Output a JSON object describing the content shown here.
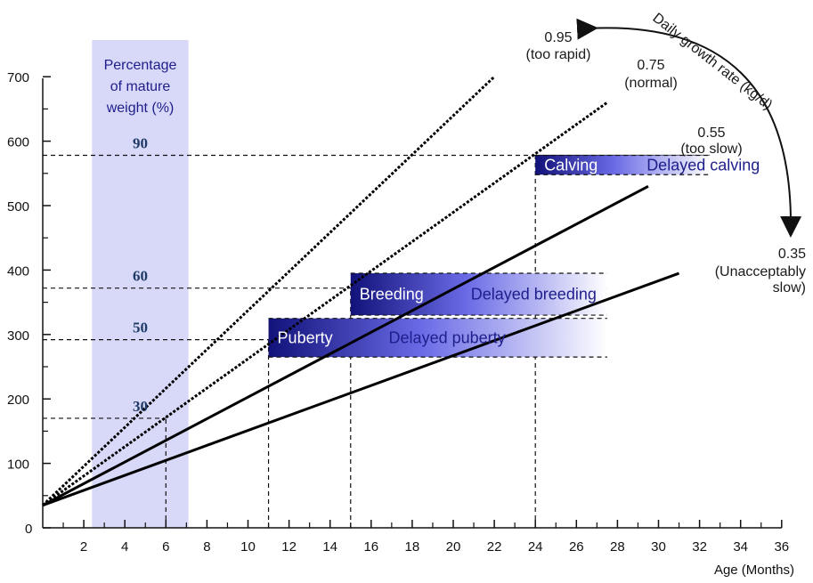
{
  "chart_data": {
    "type": "line",
    "xlabel": "Age (Months)",
    "ylabel": "",
    "xlim": [
      0,
      36
    ],
    "ylim": [
      0,
      700
    ],
    "x_ticks": [
      "2",
      "4",
      "6",
      "8",
      "10",
      "12",
      "14",
      "16",
      "18",
      "20",
      "22",
      "24",
      "26",
      "28",
      "30",
      "32",
      "34",
      "36"
    ],
    "y_ticks": [
      "0",
      "100",
      "200",
      "300",
      "400",
      "500",
      "600",
      "700"
    ],
    "rate_title": "Daily growth rate (kg/d)",
    "series": [
      {
        "rate": "0.95",
        "note": "(too rapid)",
        "x": [
          0,
          22
        ],
        "y": [
          35,
          700
        ],
        "style": "dotted"
      },
      {
        "rate": "0.75",
        "note": "(normal)",
        "x": [
          0,
          27.5
        ],
        "y": [
          35,
          660
        ],
        "style": "dotted"
      },
      {
        "rate": "0.55",
        "note": "(too slow)",
        "x": [
          0,
          29.5
        ],
        "y": [
          35,
          530
        ],
        "style": "solid"
      },
      {
        "rate": "0.35",
        "note": "(Unacceptably slow)",
        "x": [
          0,
          31
        ],
        "y": [
          35,
          395
        ],
        "style": "solid"
      }
    ],
    "mature_weight": {
      "header": "Percentage of mature weight (%)",
      "x_range": [
        2.4,
        7.1
      ],
      "markers": [
        {
          "pct": "90",
          "weight": 578
        },
        {
          "pct": "60",
          "weight": 372
        },
        {
          "pct": "50",
          "weight": 292
        },
        {
          "pct": "30",
          "weight": 170
        }
      ]
    },
    "bands": [
      {
        "label": "Puberty",
        "delayed": "Delayed puberty",
        "start_month": 11,
        "end_month": 27.5,
        "y_top": 325,
        "y_bottom": 265
      },
      {
        "label": "Breeding",
        "delayed": "Delayed breeding",
        "start_month": 15,
        "end_month": 27.5,
        "y_top": 395,
        "y_bottom": 330
      },
      {
        "label": "Calving",
        "delayed": "Delayed calving",
        "start_month": 24,
        "end_month": 32.5,
        "y_top": 578,
        "y_bottom": 548
      }
    ],
    "guides": [
      {
        "weight": 578,
        "from_month": 0,
        "to_month": 32.5
      },
      {
        "weight": 372,
        "from_month": 0,
        "to_month": 27.5
      },
      {
        "weight": 292,
        "from_month": 0,
        "to_month": 11
      },
      {
        "weight": 170,
        "from_month": 0,
        "to_month": 6
      }
    ],
    "vguides": [
      {
        "month": 6,
        "from_weight": 0,
        "to_weight": 170
      },
      {
        "month": 11,
        "from_weight": 0,
        "to_weight": 292
      },
      {
        "month": 15,
        "from_weight": 0,
        "to_weight": 372
      },
      {
        "month": 24,
        "from_weight": 0,
        "to_weight": 578
      }
    ]
  },
  "colors": {
    "band_shade": "#d8d8f8",
    "bar_dark": "#1a1a8a",
    "bar_mid": "#5b5be0",
    "bar_light": "#ffffff"
  }
}
